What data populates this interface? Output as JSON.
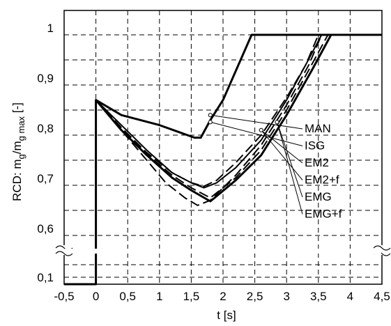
{
  "chart_data": {
    "type": "line",
    "x_ticks": [
      "-0,5",
      "0",
      "0,5",
      "1",
      "1,5",
      "2",
      "2,5",
      "3",
      "3,5",
      "4",
      "4,5"
    ],
    "y_ticks": [
      "0,1",
      "0,6",
      "0,7",
      "0,8",
      "0,9",
      "1"
    ],
    "xlabel": "t  [s]",
    "ylabel": {
      "base": "RCD: m",
      "sub1": "g",
      "mid": "/m",
      "sub2": "g max",
      "unit": "  [-]"
    },
    "xlim": [
      -0.5,
      4.5
    ],
    "y_axis_break": "between 0,1 and 0,6",
    "grid": true,
    "grid_style": "dashed",
    "series": [
      {
        "name": "MAN",
        "dash": "solid",
        "width": 3,
        "points": [
          [
            -0.5,
            0.1
          ],
          [
            0,
            0.1
          ],
          [
            0,
            0.87
          ],
          [
            0.4,
            0.84
          ],
          [
            1.0,
            0.82
          ],
          [
            1.55,
            0.795
          ],
          [
            1.65,
            0.795
          ],
          [
            1.8,
            0.83
          ],
          [
            2.0,
            0.87
          ],
          [
            2.45,
            1.0
          ],
          [
            4.5,
            1.0
          ]
        ]
      },
      {
        "name": "ISG",
        "dash": "solid",
        "width": 2,
        "points": [
          [
            0,
            0.87
          ],
          [
            0.4,
            0.82
          ],
          [
            0.8,
            0.77
          ],
          [
            1.2,
            0.725
          ],
          [
            1.5,
            0.705
          ],
          [
            1.7,
            0.695
          ],
          [
            1.9,
            0.705
          ],
          [
            2.2,
            0.735
          ],
          [
            2.6,
            0.79
          ],
          [
            3.0,
            0.87
          ],
          [
            3.3,
            0.94
          ],
          [
            3.55,
            1.0
          ]
        ]
      },
      {
        "name": "EM2",
        "dash": "dashed",
        "width": 2,
        "points": [
          [
            0,
            0.87
          ],
          [
            0.4,
            0.815
          ],
          [
            0.8,
            0.765
          ],
          [
            1.2,
            0.725
          ],
          [
            1.5,
            0.705
          ],
          [
            1.7,
            0.698
          ],
          [
            1.9,
            0.71
          ],
          [
            2.2,
            0.745
          ],
          [
            2.6,
            0.8
          ],
          [
            3.0,
            0.875
          ],
          [
            3.3,
            0.94
          ],
          [
            3.5,
            1.0
          ]
        ]
      },
      {
        "name": "EM2+f",
        "dash": "dashed",
        "width": 2,
        "points": [
          [
            0,
            0.87
          ],
          [
            0.4,
            0.81
          ],
          [
            0.8,
            0.75
          ],
          [
            1.1,
            0.705
          ],
          [
            1.4,
            0.675
          ],
          [
            1.6,
            0.66
          ],
          [
            1.8,
            0.67
          ],
          [
            2.2,
            0.72
          ],
          [
            2.6,
            0.78
          ],
          [
            3.0,
            0.86
          ],
          [
            3.35,
            0.94
          ],
          [
            3.55,
            1.0
          ]
        ]
      },
      {
        "name": "EMG",
        "dash": "solid",
        "width": 3,
        "points": [
          [
            0,
            0.87
          ],
          [
            0.4,
            0.81
          ],
          [
            0.8,
            0.76
          ],
          [
            1.2,
            0.715
          ],
          [
            1.5,
            0.69
          ],
          [
            1.8,
            0.668
          ],
          [
            2.2,
            0.71
          ],
          [
            2.6,
            0.76
          ],
          [
            3.0,
            0.84
          ],
          [
            3.4,
            0.93
          ],
          [
            3.7,
            1.0
          ]
        ]
      },
      {
        "name": "EMG+f",
        "dash": "dashed",
        "width": 2,
        "points": [
          [
            0,
            0.87
          ],
          [
            0.4,
            0.812
          ],
          [
            0.8,
            0.762
          ],
          [
            1.2,
            0.72
          ],
          [
            1.5,
            0.695
          ],
          [
            1.8,
            0.675
          ],
          [
            2.2,
            0.715
          ],
          [
            2.6,
            0.77
          ],
          [
            3.0,
            0.85
          ],
          [
            3.35,
            0.93
          ],
          [
            3.65,
            1.0
          ]
        ]
      }
    ],
    "annotation_points": [
      [
        1.8,
        0.84
      ],
      [
        1.8,
        0.826
      ],
      [
        2.6,
        0.81
      ],
      [
        2.85,
        0.826
      ]
    ],
    "legend": {
      "placement": "right",
      "entries": [
        "MAN",
        "ISG",
        "EM2",
        "EM2+f",
        "EMG",
        "EMG+f"
      ]
    }
  }
}
